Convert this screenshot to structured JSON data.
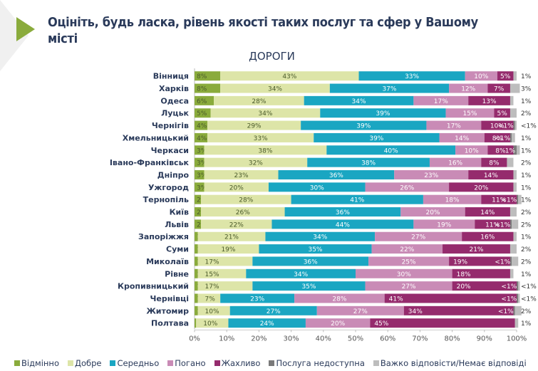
{
  "header": {
    "title": "Оцініть, будь ласка, рівень якості таких послуг та сфер у Вашому місті",
    "subtitle": "ДОРОГИ"
  },
  "chart_data": {
    "type": "bar",
    "orientation": "horizontal",
    "stacked": true,
    "title": "ДОРОГИ",
    "xlabel": "",
    "ylabel": "",
    "xlim": [
      0,
      100
    ],
    "x_ticks": [
      "0%",
      "10%",
      "20%",
      "30%",
      "40%",
      "50%",
      "60%",
      "70%",
      "80%",
      "90%",
      "100%"
    ],
    "legend_position": "bottom",
    "categories": [
      "Вінниця",
      "Харків",
      "Одеса",
      "Луцьк",
      "Чернігів",
      "Хмельницький",
      "Черкаси",
      "Івано-Франківськ",
      "Дніпро",
      "Ужгород",
      "Тернопіль",
      "Київ",
      "Львів",
      "Запоріжжя",
      "Суми",
      "Миколаїв",
      "Рівне",
      "Кропивницький",
      "Чернівці",
      "Житомир",
      "Полтава"
    ],
    "series": [
      {
        "name": "Відмінно",
        "color": "#8aab3c",
        "values": [
          8,
          8,
          6,
          5,
          4,
          4,
          3,
          3,
          3,
          3,
          2,
          2,
          2,
          1,
          1,
          1,
          1,
          1,
          1,
          1,
          0.5
        ],
        "labels": [
          "8%",
          "8%",
          "6%",
          "5%",
          "4%",
          "4%",
          "3%",
          "3%",
          "3%",
          "3%",
          "2%",
          "2%",
          "2%",
          "1%",
          "1%",
          "1%",
          "1%",
          "1%",
          "1%",
          "1%",
          "<1%"
        ]
      },
      {
        "name": "Добре",
        "color": "#dde5a8",
        "values": [
          43,
          34,
          28,
          34,
          29,
          33,
          38,
          32,
          23,
          20,
          28,
          26,
          22,
          21,
          19,
          17,
          15,
          17,
          7,
          10,
          10
        ],
        "labels": [
          "43%",
          "34%",
          "28%",
          "34%",
          "29%",
          "33%",
          "38%",
          "32%",
          "23%",
          "20%",
          "28%",
          "26%",
          "22%",
          "21%",
          "19%",
          "17%",
          "15%",
          "17%",
          "7%",
          "10%",
          "10%"
        ]
      },
      {
        "name": "Середньо",
        "color": "#1aa6c2",
        "values": [
          33,
          37,
          34,
          39,
          39,
          39,
          40,
          38,
          36,
          30,
          41,
          36,
          44,
          34,
          35,
          36,
          34,
          35,
          23,
          27,
          24
        ],
        "labels": [
          "33%",
          "37%",
          "34%",
          "39%",
          "39%",
          "39%",
          "40%",
          "38%",
          "36%",
          "30%",
          "41%",
          "36%",
          "44%",
          "34%",
          "35%",
          "36%",
          "34%",
          "35%",
          "23%",
          "27%",
          "24%"
        ]
      },
      {
        "name": "Погано",
        "color": "#c98bb6",
        "values": [
          10,
          12,
          17,
          15,
          17,
          14,
          10,
          16,
          23,
          26,
          18,
          20,
          19,
          27,
          22,
          25,
          30,
          27,
          28,
          27,
          20
        ],
        "labels": [
          "10%",
          "12%",
          "17%",
          "15%",
          "17%",
          "14%",
          "10%",
          "16%",
          "23%",
          "26%",
          "18%",
          "20%",
          "19%",
          "27%",
          "22%",
          "25%",
          "30%",
          "27%",
          "28%",
          "27%",
          "20%"
        ]
      },
      {
        "name": "Жахливо",
        "color": "#952b6d",
        "values": [
          5,
          7,
          13,
          5,
          10,
          8,
          8,
          8,
          14,
          20,
          11,
          14,
          11,
          16,
          21,
          19,
          18,
          20,
          41,
          34,
          45
        ],
        "labels": [
          "5%",
          "7%",
          "13%",
          "5%",
          "10%",
          "8%",
          "8%",
          "8%",
          "14%",
          "20%",
          "11%",
          "14%",
          "11%",
          "16%",
          "21%",
          "19%",
          "18%",
          "20%",
          "41%",
          "34%",
          "45%"
        ]
      },
      {
        "name": "Послуга недоступна",
        "color": "#7a7a7a",
        "values": [
          0,
          0,
          0,
          0,
          0.5,
          0.5,
          1,
          0,
          0,
          0,
          0.5,
          0,
          0.5,
          0,
          0,
          0.5,
          0,
          0.5,
          0.5,
          0.5,
          0
        ],
        "labels": [
          "",
          "",
          "",
          "",
          "<1%",
          "<1%",
          "1%",
          "",
          "",
          "",
          "<1%",
          "",
          "<1%",
          "",
          "",
          "<1%",
          "",
          "<1%",
          "<1%",
          "<1%",
          ""
        ]
      },
      {
        "name": "Важко відповісти/Немає відповіді",
        "color": "#bdbdbd",
        "values": [
          1,
          3,
          1,
          2,
          0.5,
          1,
          1,
          2,
          1,
          1,
          1,
          2,
          2,
          1,
          2,
          2,
          1,
          0.5,
          0.5,
          2,
          1
        ],
        "labels": [
          "1%",
          "3%",
          "1%",
          "2%",
          "<1%",
          "1%",
          "1%",
          "2%",
          "1%",
          "1%",
          "1%",
          "2%",
          "2%",
          "1%",
          "2%",
          "2%",
          "1%",
          "<1%",
          "<1%",
          "2%",
          "1%"
        ]
      }
    ]
  }
}
